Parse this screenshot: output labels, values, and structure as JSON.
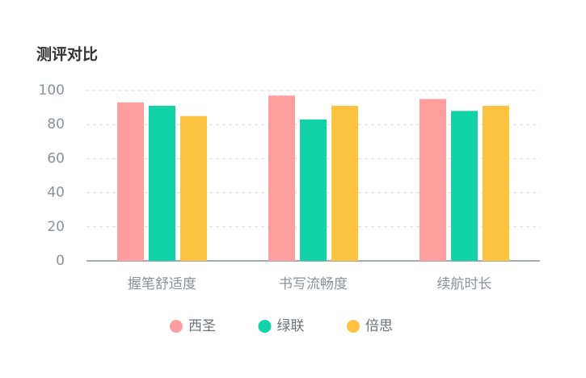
{
  "chart_data": {
    "type": "bar",
    "title": "测评对比",
    "categories": [
      "握笔舒适度",
      "书写流畅度",
      "续航时长"
    ],
    "series": [
      {
        "name": "西圣",
        "color": "#ff9e9e",
        "values": [
          93,
          97,
          95
        ]
      },
      {
        "name": "绿联",
        "color": "#12d3a8",
        "values": [
          91,
          83,
          88
        ]
      },
      {
        "name": "倍思",
        "color": "#ffc342",
        "values": [
          85,
          91,
          91
        ]
      }
    ],
    "ylim": [
      0,
      100
    ],
    "yticks": [
      0,
      20,
      40,
      60,
      80,
      100
    ],
    "grid": true
  }
}
